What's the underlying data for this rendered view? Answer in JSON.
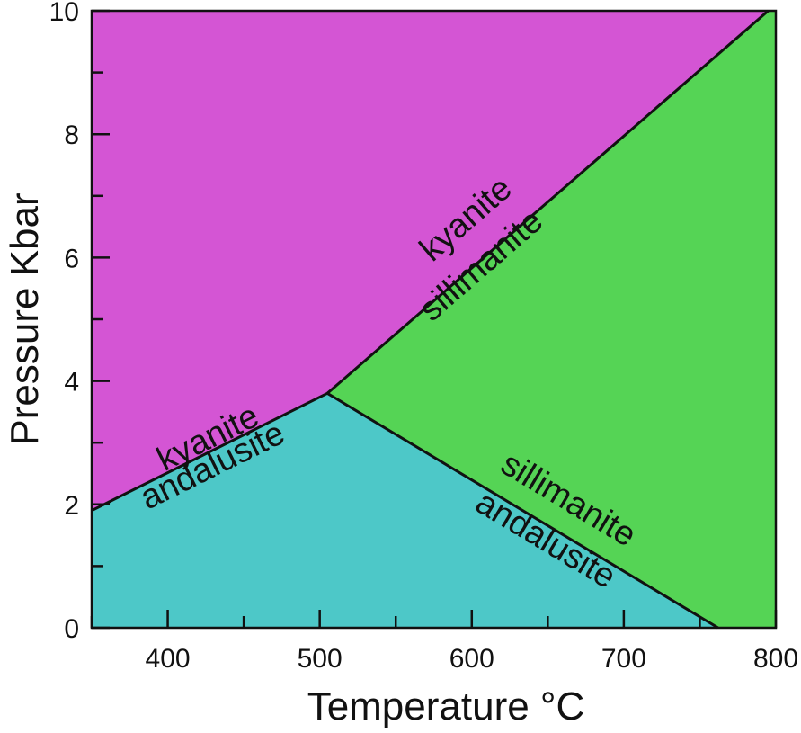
{
  "chart_data": {
    "type": "area",
    "xlabel": "Temperature °C",
    "ylabel": "Pressure Kbar",
    "xlim": [
      350,
      800
    ],
    "ylim": [
      0,
      10
    ],
    "x_ticks": [
      400,
      500,
      600,
      700,
      800
    ],
    "x_minor_ticks": [
      350,
      450,
      550,
      650,
      750
    ],
    "y_ticks": [
      0,
      2,
      4,
      6,
      8,
      10
    ],
    "y_minor_ticks": [
      1,
      3,
      5,
      7,
      9
    ],
    "triple_point": {
      "x": 505,
      "y": 3.8
    },
    "phase_boundaries": [
      {
        "name": "kyanite-andalusite",
        "points": [
          [
            350,
            1.9
          ],
          [
            505,
            3.8
          ]
        ]
      },
      {
        "name": "kyanite-sillimanite",
        "points": [
          [
            505,
            3.8
          ],
          [
            795,
            10
          ]
        ]
      },
      {
        "name": "andalusite-sillimanite",
        "points": [
          [
            505,
            3.8
          ],
          [
            762,
            0
          ]
        ]
      }
    ],
    "phase_fields": [
      {
        "name": "kyanite",
        "color": "#d455d4",
        "polygon": [
          [
            350,
            1.9
          ],
          [
            505,
            3.8
          ],
          [
            795,
            10
          ],
          [
            350,
            10
          ]
        ]
      },
      {
        "name": "sillimanite",
        "color": "#55d455",
        "polygon": [
          [
            505,
            3.8
          ],
          [
            795,
            10
          ],
          [
            800,
            10
          ],
          [
            800,
            0
          ],
          [
            762,
            0
          ]
        ]
      },
      {
        "name": "andalusite",
        "color": "#4dc8c8",
        "polygon": [
          [
            350,
            0
          ],
          [
            762,
            0
          ],
          [
            505,
            3.8
          ],
          [
            350,
            1.9
          ]
        ]
      }
    ],
    "boundary_labels": [
      {
        "text": "kyanite",
        "x": 427,
        "y": 3.05,
        "boundary": "kyanite-andalusite",
        "side": "above"
      },
      {
        "text": "andalusite",
        "x": 430,
        "y": 2.6,
        "boundary": "kyanite-andalusite",
        "side": "below"
      },
      {
        "text": "kyanite",
        "x": 597,
        "y": 6.6,
        "boundary": "kyanite-sillimanite",
        "side": "above"
      },
      {
        "text": "sillimanite",
        "x": 607,
        "y": 5.85,
        "boundary": "kyanite-sillimanite",
        "side": "below"
      },
      {
        "text": "sillimanite",
        "x": 663,
        "y": 2.05,
        "boundary": "andalusite-sillimanite",
        "side": "above"
      },
      {
        "text": "andalusite",
        "x": 648,
        "y": 1.4,
        "boundary": "andalusite-sillimanite",
        "side": "below"
      }
    ]
  }
}
